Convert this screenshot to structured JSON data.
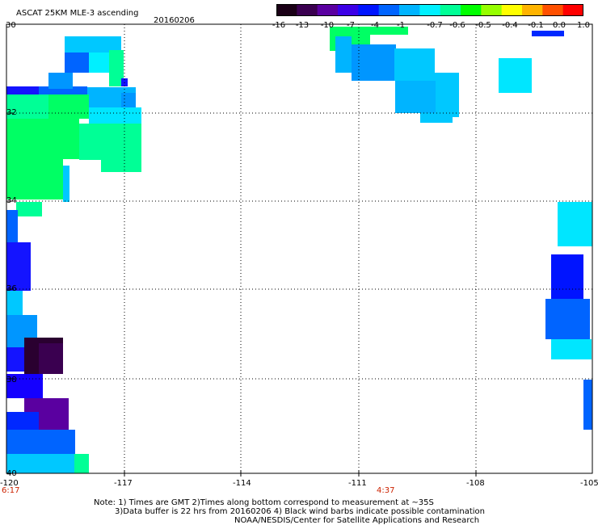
{
  "header": {
    "title": "ASCAT 25KM MLE-3 ascending",
    "date": "20160206"
  },
  "colorbar": {
    "labels": [
      "-16",
      "-13",
      "-10",
      "-7",
      "-4",
      "-1",
      "-0.7",
      "-0.6",
      "-0.5",
      "-0.4",
      "-0.1",
      "0.0",
      "1.0"
    ],
    "colors": [
      "#1a0016",
      "#3a0050",
      "#5a00a0",
      "#3c00e6",
      "#0014ff",
      "#0064ff",
      "#00b4ff",
      "#00f0ff",
      "#00ff96",
      "#00ff00",
      "#96ff00",
      "#ffff00",
      "#ffb400",
      "#ff5000",
      "#ff0000"
    ]
  },
  "axes": {
    "x_ticks": [
      "-120",
      "-117",
      "-114",
      "-111",
      "-108",
      "-105"
    ],
    "y_ticks": [
      "30",
      "32",
      "34",
      "36",
      "38",
      "40"
    ],
    "x_range": [
      -120,
      -105
    ],
    "y_range": [
      30,
      40
    ]
  },
  "pass_times": {
    "left": "6:17",
    "center": "4:37"
  },
  "footer": {
    "line1": "Note: 1) Times are GMT 2)Times along bottom correspond to measurement at ~35S",
    "line2": "3)Data buffer is 22 hrs from 20160206 4) Black wind barbs indicate possible contamination",
    "line3": "NOAA/NESDIS/Center for Satellite Applications and Research"
  }
}
